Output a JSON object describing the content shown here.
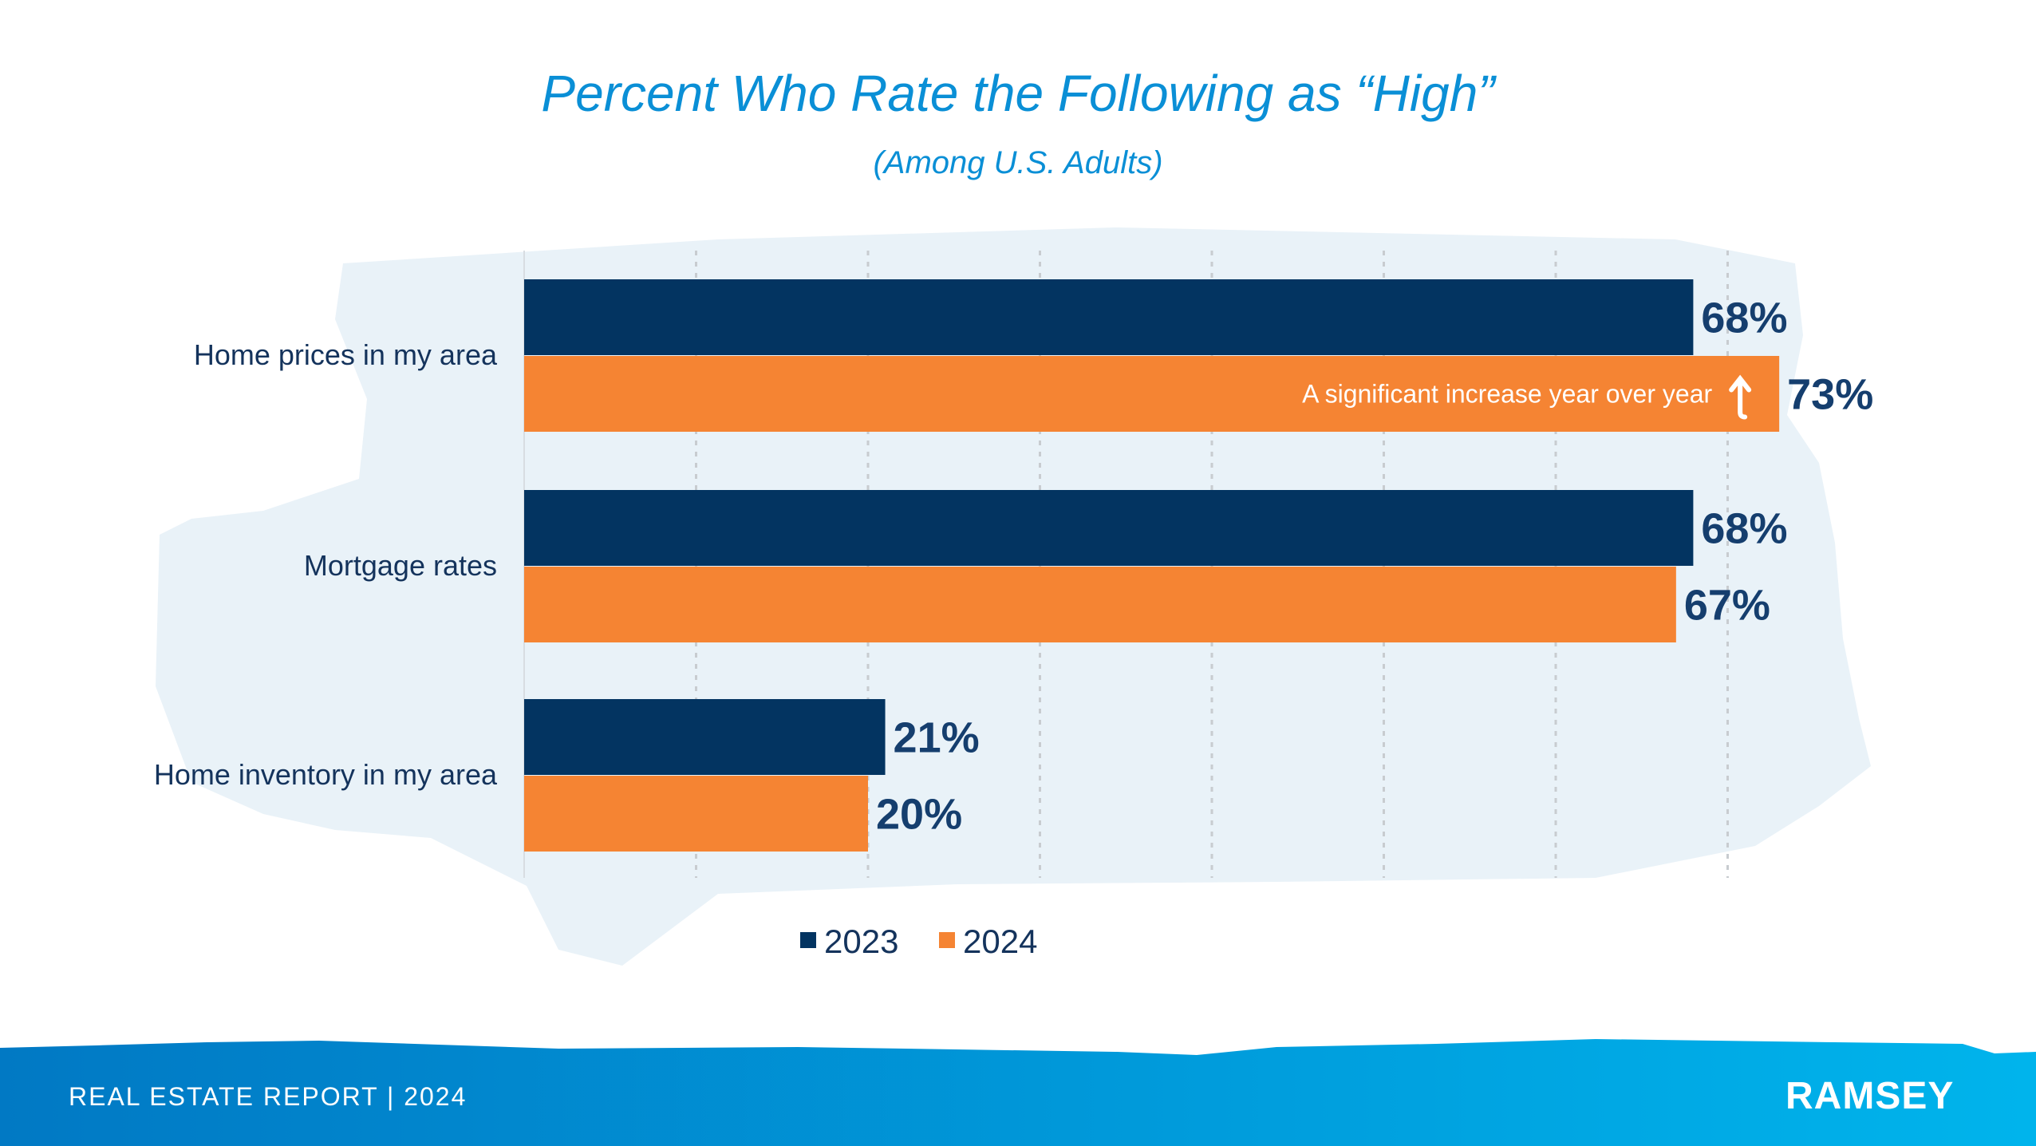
{
  "chart_data": {
    "type": "bar",
    "orientation": "horizontal",
    "title": "Percent Who Rate the Following as “High”",
    "subtitle": "(Among U.S. Adults)",
    "categories": [
      "Home prices in my area",
      "Mortgage rates",
      "Home inventory in my area"
    ],
    "series": [
      {
        "name": "2023",
        "color": "#033461",
        "values": [
          68,
          68,
          21
        ],
        "labels": [
          "68%",
          "68%",
          "21%"
        ]
      },
      {
        "name": "2024",
        "color": "#f58433",
        "values": [
          73,
          67,
          20
        ],
        "labels": [
          "73%",
          "67%",
          "20%"
        ]
      }
    ],
    "xlim": [
      0,
      70
    ],
    "grid": true,
    "legend": "bottom",
    "annotation": "A significant increase year over year",
    "annotation_icon": "arrow-up-icon"
  },
  "footer": {
    "report": "REAL ESTATE REPORT | 2024",
    "brand": "RAMSEY"
  }
}
